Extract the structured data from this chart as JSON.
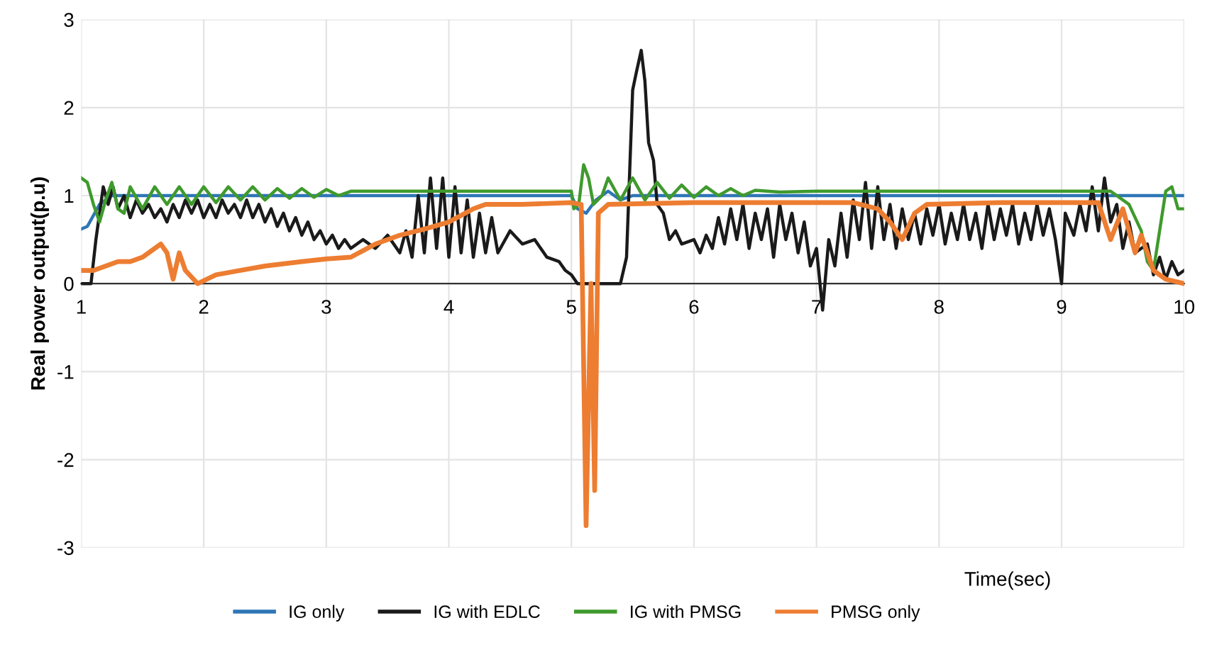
{
  "chart_data": {
    "type": "line",
    "xlabel": "Time(sec)",
    "ylabel": "Real power output(p.u)",
    "xlim": [
      1,
      10
    ],
    "xticks": [
      1,
      2,
      3,
      4,
      5,
      6,
      7,
      8,
      9,
      10
    ],
    "ylim": [
      -3,
      3
    ],
    "yticks": [
      -3,
      -2,
      -1,
      0,
      1,
      2,
      3
    ],
    "grid": true,
    "legend": "bottom",
    "marker": "none",
    "line_style": "solid",
    "series": [
      {
        "name": "IG only",
        "color": "#2e75b6",
        "x": [
          1,
          1.05,
          1.15,
          1.25,
          5.0,
          5.05,
          5.12,
          5.2,
          5.3,
          5.4,
          5.5,
          10
        ],
        "values": [
          0.62,
          0.65,
          0.9,
          1.0,
          1.0,
          0.85,
          0.8,
          0.95,
          1.05,
          0.95,
          1.0,
          1.0
        ]
      },
      {
        "name": "IG with EDLC",
        "color": "#1a1a1a",
        "x": [
          1.0,
          1.08,
          1.12,
          1.18,
          1.22,
          1.26,
          1.3,
          1.35,
          1.4,
          1.45,
          1.5,
          1.55,
          1.6,
          1.65,
          1.7,
          1.75,
          1.8,
          1.85,
          1.9,
          1.95,
          2.0,
          2.05,
          2.1,
          2.15,
          2.2,
          2.25,
          2.3,
          2.35,
          2.4,
          2.45,
          2.5,
          2.55,
          2.6,
          2.65,
          2.7,
          2.75,
          2.8,
          2.85,
          2.9,
          2.95,
          3.0,
          3.05,
          3.1,
          3.15,
          3.2,
          3.3,
          3.4,
          3.5,
          3.6,
          3.65,
          3.7,
          3.75,
          3.8,
          3.85,
          3.9,
          3.95,
          4.0,
          4.05,
          4.1,
          4.15,
          4.2,
          4.25,
          4.3,
          4.35,
          4.4,
          4.5,
          4.6,
          4.7,
          4.8,
          4.9,
          4.95,
          5.0,
          5.05,
          5.4,
          5.45,
          5.5,
          5.53,
          5.57,
          5.6,
          5.63,
          5.67,
          5.7,
          5.75,
          5.8,
          5.85,
          5.9,
          6.0,
          6.05,
          6.1,
          6.15,
          6.2,
          6.25,
          6.3,
          6.35,
          6.4,
          6.45,
          6.5,
          6.55,
          6.6,
          6.65,
          6.7,
          6.75,
          6.8,
          6.85,
          6.9,
          6.95,
          7.0,
          7.05,
          7.1,
          7.15,
          7.2,
          7.25,
          7.3,
          7.35,
          7.4,
          7.45,
          7.5,
          7.55,
          7.6,
          7.65,
          7.7,
          7.75,
          7.8,
          7.85,
          7.9,
          7.95,
          8.0,
          8.05,
          8.1,
          8.15,
          8.2,
          8.25,
          8.3,
          8.35,
          8.4,
          8.45,
          8.5,
          8.55,
          8.6,
          8.65,
          8.7,
          8.75,
          8.8,
          8.85,
          8.9,
          8.95,
          9.0,
          9.03,
          9.1,
          9.15,
          9.2,
          9.25,
          9.3,
          9.35,
          9.4,
          9.45,
          9.5,
          9.55,
          9.6,
          9.7,
          9.75,
          9.8,
          9.85,
          9.9,
          9.95,
          10.0
        ],
        "values": [
          0,
          0,
          0.5,
          1.1,
          0.9,
          1.1,
          0.85,
          1.0,
          0.75,
          0.95,
          0.8,
          0.9,
          0.75,
          0.85,
          0.7,
          0.9,
          0.75,
          0.95,
          0.8,
          0.95,
          0.75,
          0.9,
          0.75,
          0.95,
          0.8,
          0.9,
          0.75,
          0.95,
          0.75,
          0.9,
          0.7,
          0.85,
          0.65,
          0.8,
          0.6,
          0.75,
          0.55,
          0.7,
          0.5,
          0.6,
          0.45,
          0.55,
          0.4,
          0.5,
          0.4,
          0.5,
          0.4,
          0.55,
          0.35,
          0.6,
          0.3,
          1.0,
          0.35,
          1.2,
          0.4,
          1.2,
          0.3,
          1.1,
          0.35,
          0.95,
          0.3,
          0.8,
          0.35,
          0.75,
          0.35,
          0.6,
          0.45,
          0.5,
          0.3,
          0.25,
          0.15,
          0.1,
          0.0,
          0.0,
          0.3,
          2.2,
          2.4,
          2.65,
          2.3,
          1.6,
          1.4,
          0.9,
          0.8,
          0.5,
          0.6,
          0.45,
          0.5,
          0.35,
          0.55,
          0.4,
          0.75,
          0.45,
          0.85,
          0.5,
          0.9,
          0.4,
          0.8,
          0.5,
          0.85,
          0.3,
          0.9,
          0.5,
          0.8,
          0.35,
          0.7,
          0.2,
          0.4,
          -0.3,
          0.5,
          0.2,
          0.8,
          0.3,
          0.95,
          0.5,
          1.15,
          0.4,
          1.1,
          0.5,
          0.9,
          0.4,
          0.85,
          0.5,
          0.8,
          0.45,
          0.85,
          0.55,
          0.9,
          0.45,
          0.8,
          0.5,
          0.9,
          0.5,
          0.8,
          0.4,
          0.9,
          0.5,
          0.85,
          0.55,
          0.9,
          0.45,
          0.8,
          0.5,
          0.9,
          0.55,
          0.85,
          0.5,
          0.0,
          0.8,
          0.55,
          0.9,
          0.6,
          1.1,
          0.6,
          1.2,
          0.7,
          0.9,
          0.4,
          0.7,
          0.35,
          0.45,
          0.1,
          0.3,
          0.05,
          0.25,
          0.1,
          0.15
        ]
      },
      {
        "name": "IG with PMSG",
        "color": "#3f9a2d",
        "x": [
          1.0,
          1.05,
          1.1,
          1.15,
          1.2,
          1.25,
          1.3,
          1.35,
          1.4,
          1.5,
          1.6,
          1.7,
          1.8,
          1.9,
          2.0,
          2.1,
          2.2,
          2.3,
          2.4,
          2.5,
          2.6,
          2.7,
          2.8,
          2.9,
          3.0,
          3.1,
          3.2,
          3.5,
          4.0,
          4.5,
          5.0,
          5.02,
          5.06,
          5.1,
          5.14,
          5.18,
          5.25,
          5.3,
          5.4,
          5.5,
          5.6,
          5.7,
          5.8,
          5.9,
          6.0,
          6.1,
          6.2,
          6.3,
          6.4,
          6.5,
          6.7,
          7.0,
          8.0,
          9.0,
          9.4,
          9.55,
          9.65,
          9.7,
          9.75,
          9.8,
          9.85,
          9.9,
          9.95,
          10.0
        ],
        "values": [
          1.2,
          1.15,
          0.9,
          0.7,
          0.95,
          1.15,
          0.85,
          0.8,
          1.1,
          0.85,
          1.1,
          0.9,
          1.1,
          0.9,
          1.1,
          0.92,
          1.1,
          0.95,
          1.1,
          0.95,
          1.08,
          0.97,
          1.08,
          0.98,
          1.07,
          1.0,
          1.05,
          1.05,
          1.05,
          1.05,
          1.05,
          0.85,
          0.9,
          1.35,
          1.2,
          0.9,
          1.0,
          1.2,
          0.95,
          1.2,
          0.95,
          1.15,
          0.97,
          1.12,
          0.98,
          1.1,
          1.0,
          1.08,
          1.0,
          1.06,
          1.04,
          1.05,
          1.05,
          1.05,
          1.05,
          0.9,
          0.6,
          0.25,
          0.15,
          0.6,
          1.05,
          1.1,
          0.85,
          0.85
        ]
      },
      {
        "name": "PMSG only",
        "color": "#ed7d31",
        "x": [
          1.0,
          1.1,
          1.2,
          1.3,
          1.4,
          1.5,
          1.6,
          1.65,
          1.7,
          1.75,
          1.8,
          1.85,
          1.95,
          2.1,
          2.3,
          2.5,
          2.8,
          3.0,
          3.2,
          3.4,
          3.6,
          3.8,
          4.0,
          4.2,
          4.3,
          4.6,
          5.0,
          5.08,
          5.12,
          5.16,
          5.19,
          5.22,
          5.3,
          6.0,
          7.3,
          7.5,
          7.6,
          7.7,
          7.8,
          7.9,
          8.5,
          9.3,
          9.4,
          9.5,
          9.6,
          9.65,
          9.75,
          9.85,
          10.0
        ],
        "values": [
          0.15,
          0.15,
          0.2,
          0.25,
          0.25,
          0.3,
          0.4,
          0.45,
          0.35,
          0.05,
          0.35,
          0.15,
          0.0,
          0.1,
          0.15,
          0.2,
          0.25,
          0.28,
          0.3,
          0.45,
          0.55,
          0.62,
          0.7,
          0.85,
          0.9,
          0.9,
          0.92,
          0.9,
          -2.75,
          0.0,
          -2.35,
          0.8,
          0.9,
          0.92,
          0.92,
          0.85,
          0.7,
          0.5,
          0.8,
          0.9,
          0.92,
          0.92,
          0.5,
          0.85,
          0.35,
          0.55,
          0.15,
          0.05,
          0.0
        ]
      }
    ]
  }
}
